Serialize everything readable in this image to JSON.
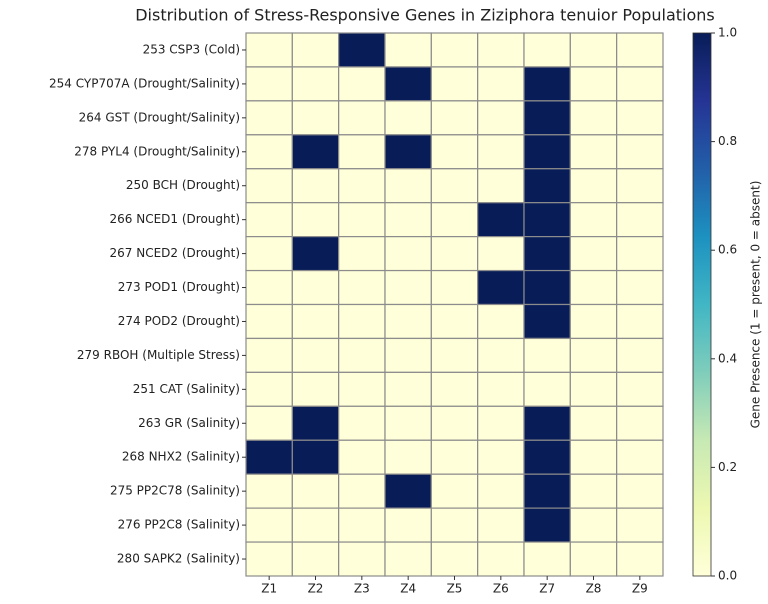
{
  "chart_data": {
    "type": "heatmap",
    "title": "Distribution of Stress-Responsive Genes in Ziziphora tenuior Populations",
    "rows": [
      "253 CSP3 (Cold)",
      "254 CYP707A (Drought/Salinity)",
      "264 GST (Drought/Salinity)",
      "278 PYL4 (Drought/Salinity)",
      "250 BCH (Drought)",
      "266 NCED1 (Drought)",
      "267 NCED2 (Drought)",
      "273 POD1 (Drought)",
      "274 POD2 (Drought)",
      "279 RBOH (Multiple Stress)",
      "251 CAT (Salinity)",
      "263 GR (Salinity)",
      "268 NHX2 (Salinity)",
      "275 PP2C78 (Salinity)",
      "276 PP2C8 (Salinity)",
      "280 SAPK2 (Salinity)"
    ],
    "categories": [
      "Z1",
      "Z2",
      "Z3",
      "Z4",
      "Z5",
      "Z6",
      "Z7",
      "Z8",
      "Z9"
    ],
    "values": [
      [
        0,
        0,
        1,
        0,
        0,
        0,
        0,
        0,
        0
      ],
      [
        0,
        0,
        0,
        1,
        0,
        0,
        1,
        0,
        0
      ],
      [
        0,
        0,
        0,
        0,
        0,
        0,
        1,
        0,
        0
      ],
      [
        0,
        1,
        0,
        1,
        0,
        0,
        1,
        0,
        0
      ],
      [
        0,
        0,
        0,
        0,
        0,
        0,
        1,
        0,
        0
      ],
      [
        0,
        0,
        0,
        0,
        0,
        1,
        1,
        0,
        0
      ],
      [
        0,
        1,
        0,
        0,
        0,
        0,
        1,
        0,
        0
      ],
      [
        0,
        0,
        0,
        0,
        0,
        1,
        1,
        0,
        0
      ],
      [
        0,
        0,
        0,
        0,
        0,
        0,
        1,
        0,
        0
      ],
      [
        0,
        0,
        0,
        0,
        0,
        0,
        0,
        0,
        0
      ],
      [
        0,
        0,
        0,
        0,
        0,
        0,
        0,
        0,
        0
      ],
      [
        0,
        1,
        0,
        0,
        0,
        0,
        1,
        0,
        0
      ],
      [
        1,
        1,
        0,
        0,
        0,
        0,
        1,
        0,
        0
      ],
      [
        0,
        0,
        0,
        1,
        0,
        0,
        1,
        0,
        0
      ],
      [
        0,
        0,
        0,
        0,
        0,
        0,
        1,
        0,
        0
      ],
      [
        0,
        0,
        0,
        0,
        0,
        0,
        0,
        0,
        0
      ]
    ],
    "colors": [
      "#ffffd9",
      "#edf8b1",
      "#c7e9b4",
      "#7fcdbb",
      "#41b6c4",
      "#1d91c0",
      "#225ea8",
      "#253494",
      "#081d58"
    ],
    "colorbar_label": "Gene Presence (1 = present, 0 = absent)",
    "clim": [
      0,
      1
    ],
    "cticks": [
      {
        "value": 0,
        "label": "0.0"
      },
      {
        "value": 0.2,
        "label": "0.2"
      },
      {
        "value": 0.4,
        "label": "0.4"
      },
      {
        "value": 0.6,
        "label": "0.6"
      },
      {
        "value": 0.8,
        "label": "0.8"
      },
      {
        "value": 1,
        "label": "1.0"
      }
    ]
  }
}
